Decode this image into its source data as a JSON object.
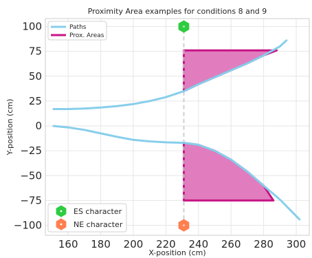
{
  "chart_data": {
    "type": "line",
    "title": "Proximity Area examples for conditions 8 and 9",
    "xlabel": "X-position (cm)",
    "ylabel": "Y-position (cm)",
    "xlim": [
      146,
      308
    ],
    "ylim": [
      -110,
      108
    ],
    "xticks": [
      160,
      180,
      200,
      220,
      240,
      260,
      280,
      300
    ],
    "yticks": [
      100,
      75,
      50,
      25,
      0,
      -25,
      -50,
      -75,
      -100
    ],
    "xtick_labels": [
      "160",
      "180",
      "200",
      "220",
      "240",
      "260",
      "280",
      "300"
    ],
    "ytick_labels": [
      "100",
      "75",
      "50",
      "25",
      "0",
      "−25",
      "−50",
      "−75",
      "−100"
    ],
    "grid": true,
    "divider_x": 231,
    "series": [
      {
        "kind": "path",
        "color": "#87CEEB",
        "x": [
          151,
          160,
          170,
          180,
          190,
          200,
          210,
          220,
          231,
          240,
          250,
          260,
          270,
          280,
          290,
          294
        ],
        "y": [
          17,
          17,
          17.5,
          18.5,
          20,
          22,
          25,
          29,
          35,
          42,
          49,
          56,
          63,
          71,
          80,
          86
        ]
      },
      {
        "kind": "path",
        "color": "#87CEEB",
        "x": [
          151,
          160,
          170,
          180,
          190,
          200,
          210,
          220,
          231,
          240,
          250,
          260,
          270,
          280,
          290,
          302
        ],
        "y": [
          0,
          -1.5,
          -4,
          -7.5,
          -11,
          -14,
          -15.5,
          -16.5,
          -17,
          -19,
          -25,
          -34,
          -46,
          -60,
          -74,
          -94
        ]
      }
    ],
    "areas": [
      {
        "color": "#C71585",
        "fill": "#E17DBE",
        "x": [
          231,
          231,
          288,
          280,
          270,
          260,
          250,
          240,
          231
        ],
        "y": [
          35,
          76,
          76,
          71,
          63,
          56,
          49,
          42,
          35
        ]
      },
      {
        "color": "#C71585",
        "fill": "#E17DBE",
        "x": [
          231,
          240,
          250,
          260,
          270,
          280,
          286,
          231,
          231
        ],
        "y": [
          -17,
          -19,
          -25,
          -34,
          -46,
          -60,
          -75,
          -75,
          -17
        ]
      }
    ],
    "markers": [
      {
        "name": "ES character",
        "x": 231,
        "y": 100,
        "color": "#2ECC40",
        "inner": "#9FE39F"
      },
      {
        "name": "NE character",
        "x": 231,
        "y": -100,
        "color": "#FF7F50",
        "inner": "#FFC8B0"
      }
    ],
    "legend_top": {
      "placement": "top-left",
      "entries": [
        {
          "label": "Paths",
          "color": "#87CEEB"
        },
        {
          "label": "Prox. Areas",
          "color": "#C71585"
        }
      ]
    },
    "legend_bottom": {
      "placement": "bottom-left",
      "entries": [
        {
          "label": "ES character",
          "color": "#2ECC40"
        },
        {
          "label": "NE character",
          "color": "#FF7F50"
        }
      ]
    }
  }
}
